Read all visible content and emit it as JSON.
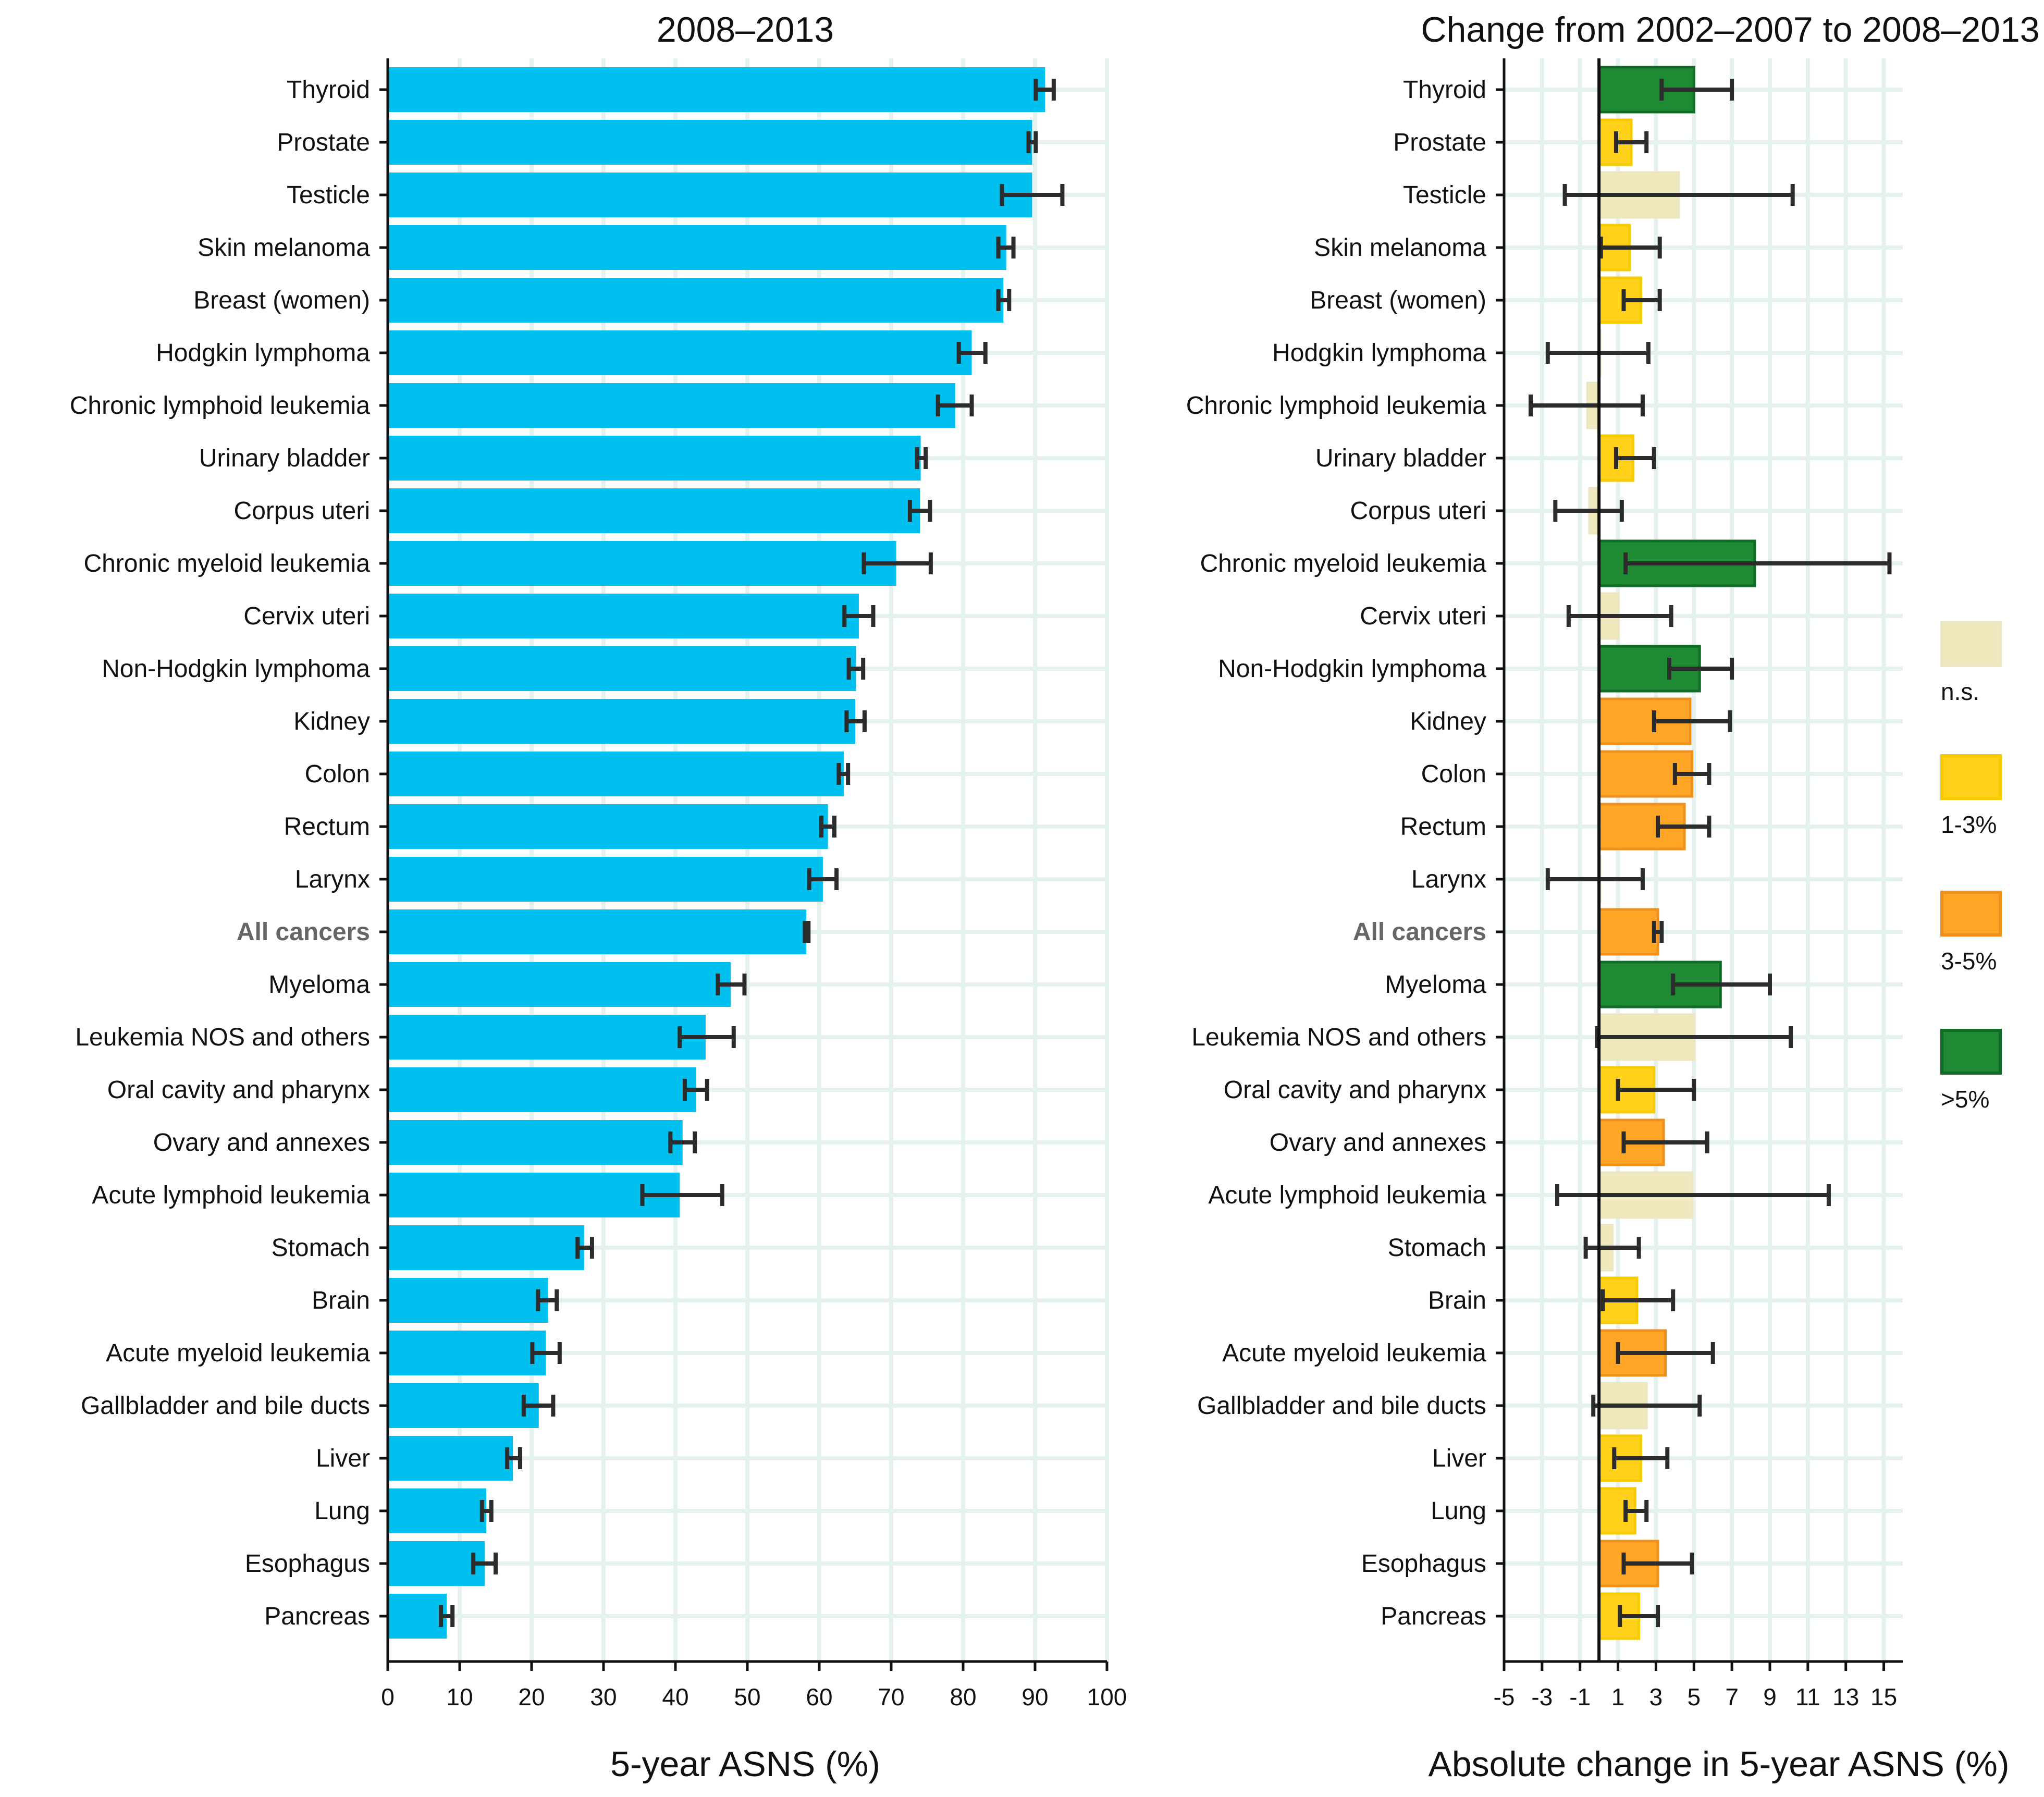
{
  "chart_data": [
    {
      "type": "bar",
      "orientation": "horizontal",
      "title": "2008–2013",
      "xlabel": "5-year ASNS (%)",
      "ylabel": "",
      "xlim": [
        0,
        100
      ],
      "xticks": [
        "0",
        "10",
        "20",
        "30",
        "40",
        "50",
        "60",
        "70",
        "80",
        "90",
        "100"
      ],
      "grid": true,
      "bar_color": "#00c0f0",
      "error_color": "#2c2c2c",
      "categories": [
        "Thyroid",
        "Prostate",
        "Testicle",
        "Skin melanoma",
        "Breast (women)",
        "Hodgkin lymphoma",
        "Chronic lymphoid leukemia",
        "Urinary bladder",
        "Corpus uteri",
        "Chronic myeloid leukemia",
        "Cervix uteri",
        "Non-Hodgkin lymphoma",
        "Kidney",
        "Colon",
        "Rectum",
        "Larynx",
        "All cancers",
        "Myeloma",
        "Leukemia NOS and others",
        "Oral cavity and pharynx",
        "Ovary and annexes",
        "Acute lymphoid leukemia",
        "Stomach",
        "Brain",
        "Acute myeloid leukemia",
        "Gallbladder and bile ducts",
        "Liver",
        "Lung",
        "Esophagus",
        "Pancreas"
      ],
      "highlight_category": "All cancers",
      "values": [
        91.4,
        89.6,
        89.6,
        86.0,
        85.6,
        81.2,
        78.9,
        74.1,
        74.0,
        70.7,
        65.5,
        65.1,
        65.0,
        63.4,
        61.2,
        60.5,
        58.2,
        47.7,
        44.2,
        42.9,
        41.0,
        40.6,
        27.3,
        22.3,
        22.0,
        21.0,
        17.4,
        13.7,
        13.5,
        8.2
      ],
      "ci_low": [
        90.1,
        89.1,
        85.4,
        84.9,
        84.9,
        79.4,
        76.5,
        73.6,
        72.6,
        66.2,
        63.5,
        64.1,
        63.8,
        62.7,
        60.3,
        58.6,
        58.0,
        45.9,
        40.6,
        41.3,
        39.3,
        35.4,
        26.4,
        20.9,
        20.1,
        18.9,
        16.6,
        13.1,
        11.9,
        7.4
      ],
      "ci_high": [
        92.6,
        90.1,
        93.8,
        87.0,
        86.4,
        83.1,
        81.2,
        74.8,
        75.4,
        75.5,
        67.5,
        66.1,
        66.3,
        64.0,
        62.1,
        62.4,
        58.5,
        49.6,
        48.1,
        44.4,
        42.7,
        46.5,
        28.4,
        23.5,
        23.9,
        23.0,
        18.4,
        14.4,
        15.0,
        9.0
      ]
    },
    {
      "type": "bar",
      "orientation": "horizontal",
      "title": "Change from 2002–2007 to 2008–2013",
      "xlabel": "Absolute change in 5-year ASNS (%)",
      "ylabel": "",
      "xlim": [
        -5,
        16
      ],
      "xticks": [
        "-5",
        "-3",
        "-1",
        "1",
        "3",
        "5",
        "7",
        "9",
        "11",
        "13",
        "15"
      ],
      "grid": true,
      "error_color": "#2c2c2c",
      "categories": [
        "Thyroid",
        "Prostate",
        "Testicle",
        "Skin melanoma",
        "Breast (women)",
        "Hodgkin lymphoma",
        "Chronic lymphoid leukemia",
        "Urinary bladder",
        "Corpus uteri",
        "Chronic myeloid leukemia",
        "Cervix uteri",
        "Non-Hodgkin lymphoma",
        "Kidney",
        "Colon",
        "Rectum",
        "Larynx",
        "All cancers",
        "Myeloma",
        "Leukemia NOS and others",
        "Oral cavity and pharynx",
        "Ovary and annexes",
        "Acute lymphoid leukemia",
        "Stomach",
        "Brain",
        "Acute myeloid leukemia",
        "Gallbladder and bile ducts",
        "Liver",
        "Lung",
        "Esophagus",
        "Pancreas"
      ],
      "highlight_category": "All cancers",
      "values": [
        5.0,
        1.7,
        4.2,
        1.6,
        2.2,
        0.05,
        -0.6,
        1.8,
        -0.5,
        8.2,
        1.0,
        5.3,
        4.8,
        4.9,
        4.5,
        0.05,
        3.1,
        6.4,
        5.0,
        2.9,
        3.4,
        4.9,
        0.7,
        2.0,
        3.5,
        2.5,
        2.2,
        1.9,
        3.1,
        2.1
      ],
      "ci_low": [
        3.3,
        0.9,
        -1.8,
        0.1,
        1.3,
        -2.7,
        -3.6,
        0.9,
        -2.3,
        1.4,
        -1.6,
        3.7,
        2.9,
        4.0,
        3.1,
        -2.7,
        2.9,
        3.9,
        -0.1,
        1.0,
        1.3,
        -2.2,
        -0.7,
        0.2,
        1.0,
        -0.3,
        0.8,
        1.4,
        1.3,
        1.1
      ],
      "ci_high": [
        7.0,
        2.5,
        10.2,
        3.2,
        3.2,
        2.6,
        2.3,
        2.9,
        1.2,
        15.3,
        3.8,
        7.0,
        6.9,
        5.8,
        5.8,
        2.3,
        3.3,
        9.0,
        10.1,
        5.0,
        5.7,
        12.1,
        2.1,
        3.9,
        6.0,
        5.3,
        3.6,
        2.5,
        4.9,
        3.1
      ],
      "significance": [
        "gt5",
        "1-3",
        "ns",
        "1-3",
        "1-3",
        "ns",
        "ns",
        "1-3",
        "ns",
        "gt5",
        "ns",
        "gt5",
        "3-5",
        "3-5",
        "3-5",
        "ns",
        "3-5",
        "gt5",
        "ns",
        "1-3",
        "3-5",
        "ns",
        "ns",
        "1-3",
        "3-5",
        "ns",
        "1-3",
        "1-3",
        "3-5",
        "1-3"
      ],
      "legend": [
        {
          "key": "ns",
          "label": "n.s.",
          "fill": "#f0e9bd",
          "stroke": "#ede6c0"
        },
        {
          "key": "1-3",
          "label": "1-3%",
          "fill": "#ffd11a",
          "stroke": "#f5cc00"
        },
        {
          "key": "3-5",
          "label": "3-5%",
          "fill": "#ffa626",
          "stroke": "#f0901c"
        },
        {
          "key": "gt5",
          "label": ">5%",
          "fill": "#1e8a34",
          "stroke": "#0f6b25"
        }
      ],
      "legend_position": "right"
    }
  ]
}
